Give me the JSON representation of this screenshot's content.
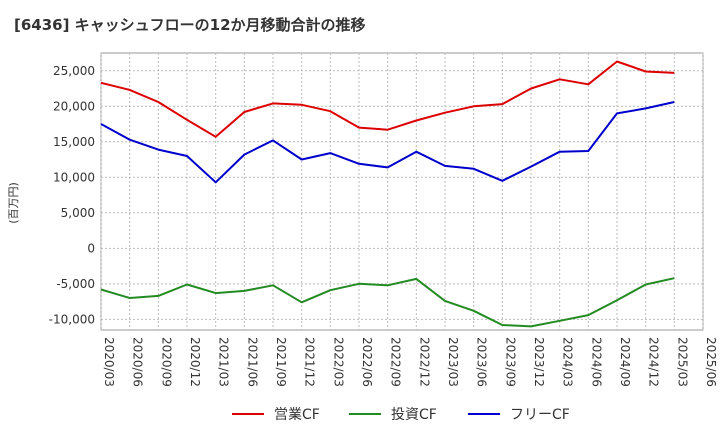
{
  "chart_data": {
    "type": "line",
    "title": "[6436]  キャッシュフローの12か月移動合計の推移",
    "ylabel": "(百万円)",
    "xlabel": "",
    "ylim": [
      -11500,
      27500
    ],
    "yticks": [
      25000,
      20000,
      15000,
      10000,
      5000,
      0,
      -5000,
      -10000
    ],
    "ytick_labels": [
      "25,000",
      "20,000",
      "15,000",
      "10,000",
      "5,000",
      "0",
      "-5,000",
      "-10,000"
    ],
    "x": [
      "2020/03",
      "2020/06",
      "2020/09",
      "2020/12",
      "2021/03",
      "2021/06",
      "2021/09",
      "2021/12",
      "2022/03",
      "2022/06",
      "2022/09",
      "2022/12",
      "2023/03",
      "2023/06",
      "2023/09",
      "2023/12",
      "2024/03",
      "2024/06",
      "2024/09",
      "2024/12",
      "2025/03",
      "2025/06"
    ],
    "grid": true,
    "legend_position": "bottom",
    "series": [
      {
        "name": "営業CF",
        "color": "#dd0000",
        "values": [
          23300,
          22300,
          20600,
          18100,
          15700,
          19200,
          20400,
          20200,
          19300,
          17000,
          16700,
          18000,
          19100,
          20000,
          20300,
          22500,
          23800,
          23100,
          26300,
          24900,
          24700,
          null
        ]
      },
      {
        "name": "投資CF",
        "color": "#228b22",
        "values": [
          -5800,
          -7000,
          -6700,
          -5100,
          -6300,
          -6000,
          -5200,
          -7600,
          -5900,
          -5000,
          -5200,
          -4300,
          -7400,
          -8800,
          -10800,
          -11000,
          -10200,
          -9400,
          -7300,
          -5100,
          -4200,
          null
        ]
      },
      {
        "name": "フリーCF",
        "color": "#0000cc",
        "values": [
          17500,
          15300,
          13900,
          13000,
          9300,
          13200,
          15200,
          12500,
          13400,
          11900,
          11400,
          13600,
          11600,
          11200,
          9500,
          11500,
          13600,
          13700,
          19000,
          19700,
          20600,
          null
        ]
      }
    ]
  }
}
